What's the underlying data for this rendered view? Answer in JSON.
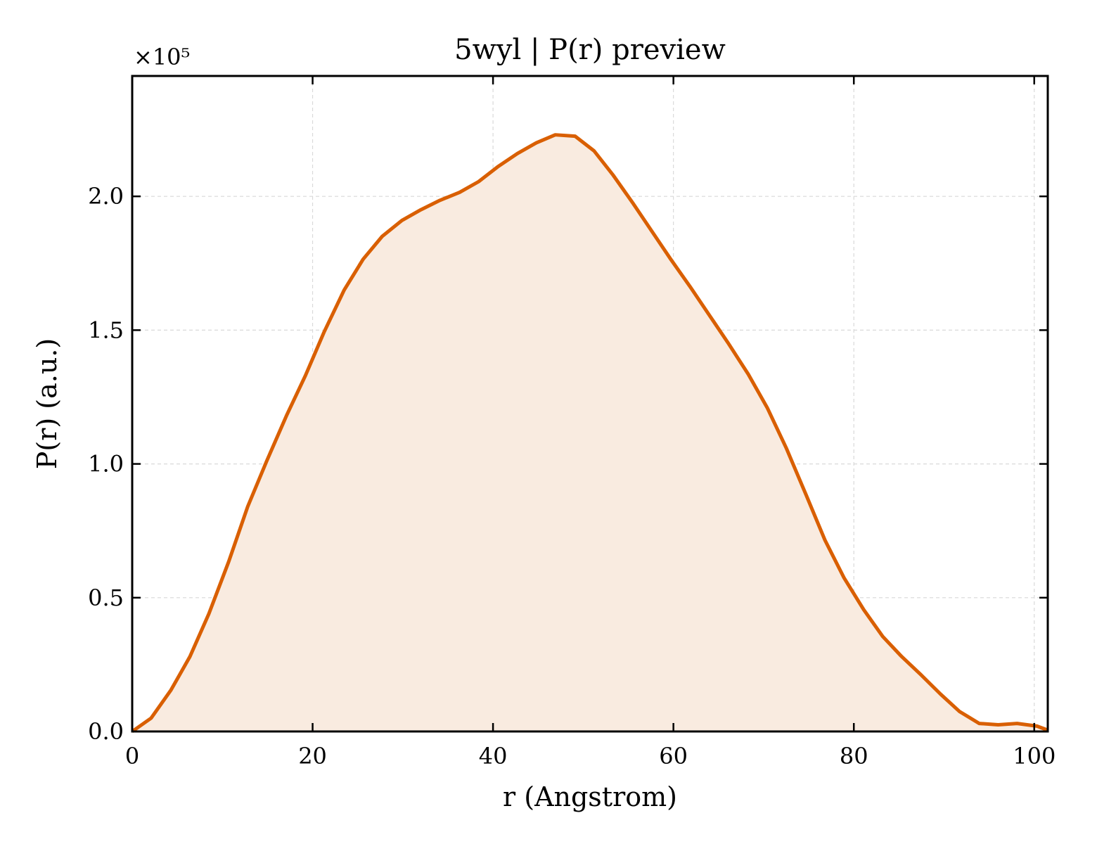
{
  "chart_data": {
    "type": "area",
    "title": "5wyl | P(r) preview",
    "xlabel": "r (Angstrom)",
    "ylabel": "P(r) (a.u.)",
    "y_offset_text": "×10⁵",
    "y_scale_factor": 100000,
    "xlim": [
      0,
      101.5
    ],
    "ylim": [
      0,
      2.45
    ],
    "xticks": [
      0,
      20,
      40,
      60,
      80,
      100
    ],
    "xtick_labels": [
      "0",
      "20",
      "40",
      "60",
      "80",
      "100"
    ],
    "yticks": [
      0,
      0.5,
      1.0,
      1.5,
      2.0
    ],
    "ytick_labels": [
      "0.0",
      "0.5",
      "1.0",
      "1.5",
      "2.0"
    ],
    "grid": true,
    "tick_direction": "in",
    "colors": {
      "line": "#d95f02",
      "fill": "#f9ebe0",
      "grid": "#d9d9d9",
      "axes": "#000000"
    },
    "series": [
      {
        "x": [
          0,
          2.1,
          4.3,
          6.4,
          8.5,
          10.7,
          12.8,
          14.9,
          17.1,
          19.2,
          21.3,
          23.5,
          25.6,
          27.7,
          29.9,
          32.0,
          34.1,
          36.3,
          38.4,
          40.5,
          42.7,
          44.8,
          46.9,
          49.1,
          51.2,
          53.3,
          55.5,
          57.6,
          59.7,
          61.9,
          64.0,
          66.1,
          68.3,
          70.4,
          72.5,
          74.7,
          76.8,
          78.9,
          81.1,
          83.2,
          85.3,
          87.5,
          89.6,
          91.7,
          93.9,
          96.0,
          98.1,
          100.3,
          101.5
        ],
        "y": [
          0.0,
          0.05,
          0.155,
          0.28,
          0.44,
          0.635,
          0.84,
          1.01,
          1.18,
          1.33,
          1.495,
          1.65,
          1.765,
          1.85,
          1.91,
          1.95,
          1.985,
          2.015,
          2.055,
          2.11,
          2.16,
          2.2,
          2.23,
          2.225,
          2.17,
          2.08,
          1.975,
          1.87,
          1.765,
          1.66,
          1.555,
          1.45,
          1.335,
          1.21,
          1.06,
          0.885,
          0.715,
          0.575,
          0.455,
          0.355,
          0.28,
          0.21,
          0.14,
          0.075,
          0.03,
          0.025,
          0.03,
          0.02,
          0.005
        ]
      }
    ]
  }
}
